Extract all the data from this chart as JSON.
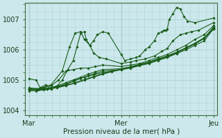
{
  "title": "Pression niveau de la mer( hPa )",
  "bg_color": "#cce8ec",
  "grid_color": "#b0d4d8",
  "line_color": "#1a5c1a",
  "ylim": [
    1003.85,
    1007.55
  ],
  "yticks": [
    1004,
    1005,
    1006,
    1007
  ],
  "xtick_labels": [
    "Mar",
    "Mer",
    "Jeu"
  ],
  "xtick_positions": [
    0.0,
    0.5,
    1.0
  ],
  "series": [
    [
      0.0,
      1005.05
    ],
    [
      0.0,
      1004.75
    ],
    [
      0.0,
      1004.72
    ],
    [
      0.0,
      1004.68
    ],
    [
      0.0,
      1004.7
    ],
    [
      0.0,
      1004.72
    ],
    [
      0.0,
      1004.7
    ],
    [
      0.0,
      1004.65
    ]
  ],
  "n_points": 96,
  "series_data": [
    [
      [
        0,
        1005.05
      ],
      [
        0.04,
        1005.0
      ],
      [
        0.06,
        1004.75
      ],
      [
        0.09,
        1004.85
      ],
      [
        0.12,
        1004.72
      ],
      [
        0.15,
        1004.8
      ],
      [
        0.18,
        1005.0
      ],
      [
        0.21,
        1005.35
      ],
      [
        0.24,
        1005.65
      ],
      [
        0.26,
        1006.1
      ],
      [
        0.28,
        1006.55
      ],
      [
        0.3,
        1006.6
      ],
      [
        0.31,
        1006.35
      ],
      [
        0.33,
        1006.15
      ],
      [
        0.35,
        1006.3
      ],
      [
        0.37,
        1006.5
      ],
      [
        0.4,
        1006.6
      ],
      [
        0.43,
        1006.55
      ],
      [
        0.5,
        1005.85
      ],
      [
        0.52,
        1005.65
      ],
      [
        0.55,
        1005.7
      ],
      [
        0.58,
        1005.75
      ],
      [
        0.6,
        1005.8
      ],
      [
        0.63,
        1006.0
      ],
      [
        0.65,
        1006.1
      ],
      [
        0.68,
        1006.3
      ],
      [
        0.7,
        1006.55
      ],
      [
        0.72,
        1006.6
      ],
      [
        0.73,
        1006.65
      ],
      [
        0.74,
        1006.65
      ],
      [
        0.75,
        1006.7
      ],
      [
        0.76,
        1007.0
      ],
      [
        0.78,
        1007.2
      ],
      [
        0.8,
        1007.4
      ],
      [
        0.82,
        1007.35
      ],
      [
        0.84,
        1007.1
      ],
      [
        0.86,
        1006.95
      ],
      [
        0.9,
        1006.9
      ],
      [
        1.0,
        1007.05
      ]
    ],
    [
      [
        0,
        1004.75
      ],
      [
        0.05,
        1004.72
      ],
      [
        0.12,
        1004.85
      ],
      [
        0.18,
        1005.3
      ],
      [
        0.22,
        1006.1
      ],
      [
        0.25,
        1006.55
      ],
      [
        0.28,
        1006.6
      ],
      [
        0.3,
        1006.35
      ],
      [
        0.33,
        1006.15
      ],
      [
        0.35,
        1005.9
      ],
      [
        0.38,
        1005.75
      ],
      [
        0.42,
        1005.7
      ],
      [
        0.5,
        1005.55
      ],
      [
        0.55,
        1005.6
      ],
      [
        0.58,
        1005.65
      ],
      [
        0.63,
        1005.7
      ],
      [
        0.68,
        1005.8
      ],
      [
        0.72,
        1005.95
      ],
      [
        0.75,
        1006.05
      ],
      [
        0.78,
        1006.3
      ],
      [
        0.82,
        1006.5
      ],
      [
        0.85,
        1006.55
      ],
      [
        0.88,
        1006.6
      ],
      [
        0.92,
        1006.65
      ],
      [
        1.0,
        1006.9
      ]
    ],
    [
      [
        0,
        1004.72
      ],
      [
        0.04,
        1004.7
      ],
      [
        0.08,
        1004.75
      ],
      [
        0.12,
        1004.82
      ],
      [
        0.16,
        1005.0
      ],
      [
        0.2,
        1005.3
      ],
      [
        0.24,
        1005.35
      ],
      [
        0.28,
        1005.4
      ],
      [
        0.32,
        1005.4
      ],
      [
        0.36,
        1005.45
      ],
      [
        0.4,
        1005.5
      ],
      [
        0.5,
        1005.45
      ],
      [
        0.55,
        1005.5
      ],
      [
        0.6,
        1005.55
      ],
      [
        0.65,
        1005.65
      ],
      [
        0.7,
        1005.75
      ],
      [
        0.75,
        1005.85
      ],
      [
        0.8,
        1006.0
      ],
      [
        0.85,
        1006.15
      ],
      [
        0.9,
        1006.35
      ],
      [
        0.95,
        1006.5
      ],
      [
        1.0,
        1006.8
      ]
    ],
    [
      [
        0,
        1004.68
      ],
      [
        0.05,
        1004.7
      ],
      [
        0.1,
        1004.72
      ],
      [
        0.15,
        1004.78
      ],
      [
        0.2,
        1004.85
      ],
      [
        0.25,
        1005.0
      ],
      [
        0.3,
        1005.1
      ],
      [
        0.35,
        1005.18
      ],
      [
        0.4,
        1005.25
      ],
      [
        0.45,
        1005.3
      ],
      [
        0.5,
        1005.35
      ],
      [
        0.55,
        1005.4
      ],
      [
        0.6,
        1005.48
      ],
      [
        0.65,
        1005.55
      ],
      [
        0.7,
        1005.65
      ],
      [
        0.75,
        1005.75
      ],
      [
        0.8,
        1005.88
      ],
      [
        0.85,
        1006.0
      ],
      [
        0.9,
        1006.15
      ],
      [
        0.95,
        1006.3
      ],
      [
        1.0,
        1006.7
      ]
    ],
    [
      [
        0,
        1004.7
      ],
      [
        0.05,
        1004.68
      ],
      [
        0.1,
        1004.7
      ],
      [
        0.15,
        1004.75
      ],
      [
        0.2,
        1004.82
      ],
      [
        0.25,
        1004.9
      ],
      [
        0.3,
        1005.0
      ],
      [
        0.35,
        1005.1
      ],
      [
        0.4,
        1005.2
      ],
      [
        0.45,
        1005.28
      ],
      [
        0.5,
        1005.35
      ],
      [
        0.55,
        1005.42
      ],
      [
        0.6,
        1005.5
      ],
      [
        0.65,
        1005.58
      ],
      [
        0.7,
        1005.68
      ],
      [
        0.75,
        1005.78
      ],
      [
        0.8,
        1005.9
      ],
      [
        0.85,
        1006.05
      ],
      [
        0.9,
        1006.2
      ],
      [
        0.95,
        1006.38
      ],
      [
        1.0,
        1006.75
      ]
    ],
    [
      [
        0,
        1004.72
      ],
      [
        0.05,
        1004.7
      ],
      [
        0.1,
        1004.72
      ],
      [
        0.15,
        1004.76
      ],
      [
        0.2,
        1004.83
      ],
      [
        0.25,
        1004.92
      ],
      [
        0.3,
        1005.02
      ],
      [
        0.35,
        1005.12
      ],
      [
        0.4,
        1005.22
      ],
      [
        0.45,
        1005.3
      ],
      [
        0.5,
        1005.37
      ],
      [
        0.55,
        1005.44
      ],
      [
        0.6,
        1005.52
      ],
      [
        0.65,
        1005.6
      ],
      [
        0.7,
        1005.7
      ],
      [
        0.75,
        1005.8
      ],
      [
        0.8,
        1005.92
      ],
      [
        0.85,
        1006.07
      ],
      [
        0.9,
        1006.22
      ],
      [
        0.95,
        1006.4
      ],
      [
        1.0,
        1006.72
      ]
    ],
    [
      [
        0,
        1004.7
      ],
      [
        0.04,
        1004.7
      ],
      [
        0.08,
        1004.72
      ],
      [
        0.12,
        1004.76
      ],
      [
        0.16,
        1004.83
      ],
      [
        0.2,
        1004.92
      ],
      [
        0.24,
        1005.01
      ],
      [
        0.28,
        1005.1
      ],
      [
        0.32,
        1005.2
      ],
      [
        0.36,
        1005.28
      ],
      [
        0.4,
        1005.35
      ],
      [
        0.5,
        1005.38
      ],
      [
        0.55,
        1005.44
      ],
      [
        0.6,
        1005.52
      ],
      [
        0.65,
        1005.6
      ],
      [
        0.7,
        1005.7
      ],
      [
        0.75,
        1005.8
      ],
      [
        0.8,
        1005.92
      ],
      [
        0.85,
        1006.06
      ],
      [
        0.9,
        1006.22
      ],
      [
        0.95,
        1006.4
      ],
      [
        1.0,
        1006.72
      ]
    ],
    [
      [
        0,
        1004.65
      ],
      [
        0.04,
        1004.65
      ],
      [
        0.08,
        1004.68
      ],
      [
        0.12,
        1004.72
      ],
      [
        0.16,
        1004.8
      ],
      [
        0.2,
        1004.88
      ],
      [
        0.24,
        1004.97
      ],
      [
        0.28,
        1005.06
      ],
      [
        0.32,
        1005.15
      ],
      [
        0.36,
        1005.23
      ],
      [
        0.4,
        1005.3
      ],
      [
        0.5,
        1005.35
      ],
      [
        0.55,
        1005.42
      ],
      [
        0.6,
        1005.5
      ],
      [
        0.65,
        1005.58
      ],
      [
        0.7,
        1005.68
      ],
      [
        0.75,
        1005.78
      ],
      [
        0.8,
        1005.9
      ],
      [
        0.85,
        1006.05
      ],
      [
        0.9,
        1006.2
      ],
      [
        0.95,
        1006.38
      ],
      [
        1.0,
        1006.68
      ]
    ]
  ]
}
